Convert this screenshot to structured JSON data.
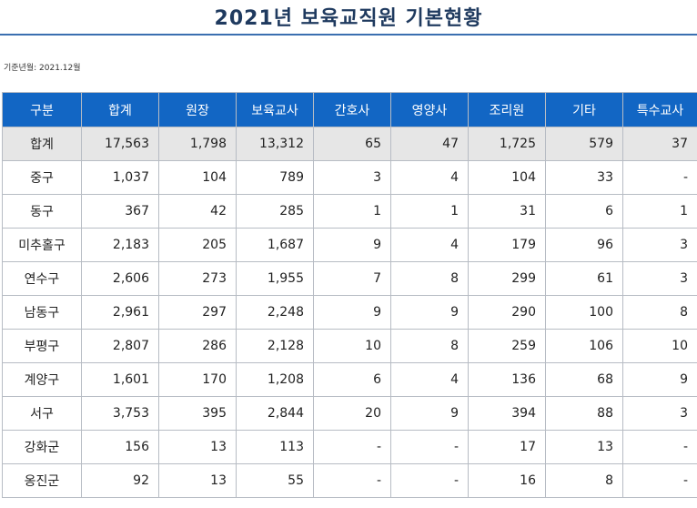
{
  "title": "2021년 보육교직원 기본현황",
  "base_date": "기준년월: 2021.12월",
  "table": {
    "headers": [
      "구분",
      "합계",
      "원장",
      "보육교사",
      "간호사",
      "영양사",
      "조리원",
      "기타",
      "특수교사"
    ],
    "rows": [
      [
        "합계",
        "17,563",
        "1,798",
        "13,312",
        "65",
        "47",
        "1,725",
        "579",
        "37"
      ],
      [
        "중구",
        "1,037",
        "104",
        "789",
        "3",
        "4",
        "104",
        "33",
        "-"
      ],
      [
        "동구",
        "367",
        "42",
        "285",
        "1",
        "1",
        "31",
        "6",
        "1"
      ],
      [
        "미추홀구",
        "2,183",
        "205",
        "1,687",
        "9",
        "4",
        "179",
        "96",
        "3"
      ],
      [
        "연수구",
        "2,606",
        "273",
        "1,955",
        "7",
        "8",
        "299",
        "61",
        "3"
      ],
      [
        "남동구",
        "2,961",
        "297",
        "2,248",
        "9",
        "9",
        "290",
        "100",
        "8"
      ],
      [
        "부평구",
        "2,807",
        "286",
        "2,128",
        "10",
        "8",
        "259",
        "106",
        "10"
      ],
      [
        "계양구",
        "1,601",
        "170",
        "1,208",
        "6",
        "4",
        "136",
        "68",
        "9"
      ],
      [
        "서구",
        "3,753",
        "395",
        "2,844",
        "20",
        "9",
        "394",
        "88",
        "3"
      ],
      [
        "강화군",
        "156",
        "13",
        "113",
        "-",
        "-",
        "17",
        "13",
        "-"
      ],
      [
        "옹진군",
        "92",
        "13",
        "55",
        "-",
        "-",
        "16",
        "8",
        "-"
      ]
    ]
  },
  "colors": {
    "header_bg": "#1266c4",
    "header_text": "#ffffff",
    "total_row_bg": "#e6e6e6",
    "title_color": "#1f3a5f",
    "title_rule": "#3a6fb0"
  }
}
